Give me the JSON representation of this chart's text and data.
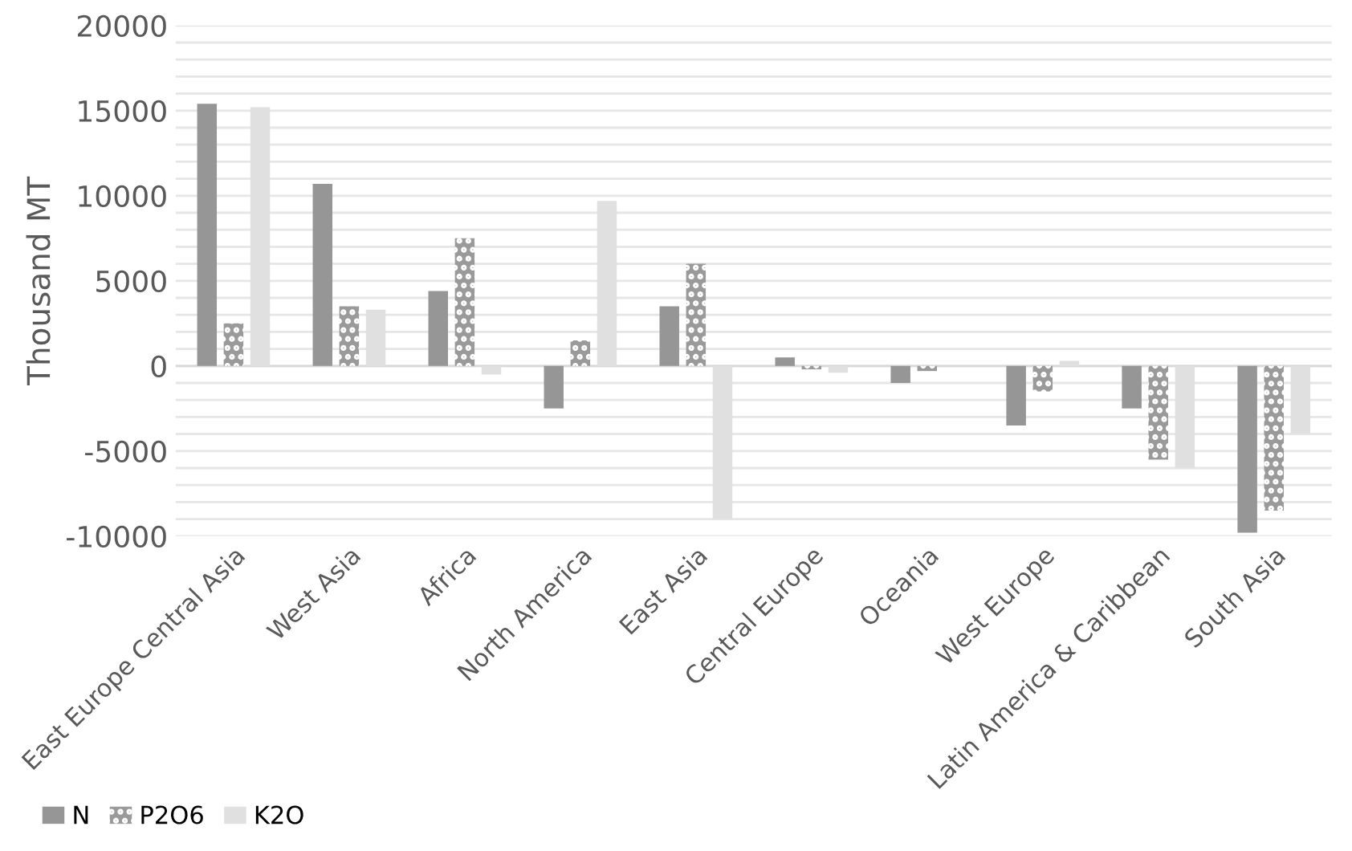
{
  "chart_data": {
    "type": "bar",
    "ylabel": "Thousand MT",
    "categories": [
      "East Europe Central Asia",
      "West Asia",
      "Africa",
      "North America",
      "East Asia",
      "Central Europe",
      "Oceania",
      "West Europe",
      "Latin America & Caribbean",
      "South Asia"
    ],
    "series": [
      {
        "name": "N",
        "color": "#969696",
        "values": [
          15400,
          10700,
          4400,
          -2500,
          3500,
          500,
          -1000,
          -3500,
          -2500,
          -9800
        ]
      },
      {
        "name": "P2O6",
        "color": "#9a9a9a",
        "values": [
          2500,
          3500,
          7500,
          1500,
          6000,
          -200,
          -300,
          -1500,
          -5500,
          -8500
        ]
      },
      {
        "name": "K2O",
        "color": "#e0e0e0",
        "values": [
          15200,
          3300,
          -500,
          9700,
          -9000,
          -400,
          0,
          300,
          -6000,
          -4000
        ]
      }
    ],
    "ylim": [
      -10000,
      20000
    ],
    "yticks": [
      -10000,
      {
        "value": -9000,
        "label": null
      },
      {
        "value": -8000,
        "label": null
      },
      {
        "value": -7000,
        "label": null
      },
      {
        "value": -6000,
        "label": null
      },
      -5000,
      {
        "value": -4000,
        "label": null
      },
      {
        "value": -3000,
        "label": null
      },
      {
        "value": -2000,
        "label": null
      },
      {
        "value": -1000,
        "label": null
      },
      0,
      {
        "value": 1000,
        "label": null
      },
      {
        "value": 2000,
        "label": null
      },
      {
        "value": 3000,
        "label": null
      },
      {
        "value": 4000,
        "label": null
      },
      5000,
      {
        "value": 6000,
        "label": null
      },
      {
        "value": 7000,
        "label": null
      },
      {
        "value": 8000,
        "label": null
      },
      {
        "value": 9000,
        "label": null
      },
      10000,
      {
        "value": 11000,
        "label": null
      },
      {
        "value": 12000,
        "label": null
      },
      {
        "value": 13000,
        "label": null
      },
      {
        "value": 14000,
        "label": null
      },
      15000,
      {
        "value": 16000,
        "label": null
      },
      {
        "value": 17000,
        "label": null
      },
      {
        "value": 18000,
        "label": null
      },
      {
        "value": 19000,
        "label": null
      },
      20000
    ],
    "grid": "y",
    "legend": "bottom left"
  }
}
